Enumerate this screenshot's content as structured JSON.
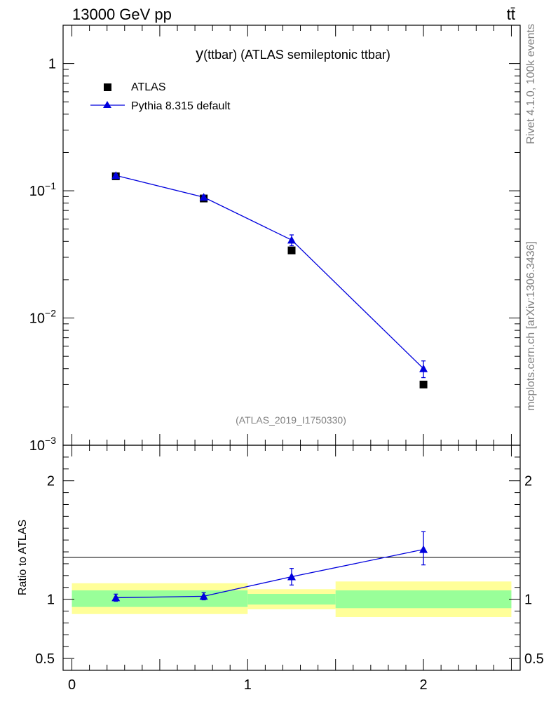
{
  "header": {
    "energy_label": "13000 GeV pp",
    "process_label": "tt̄"
  },
  "side_labels": {
    "rivet": "Rivet 4.1.0,  100k events",
    "mcplots": "mcplots.cern.ch [arXiv:1306.3436]"
  },
  "colors": {
    "data": "#000000",
    "mc": "#0000dd",
    "band_inner": "#99ff99",
    "band_outer": "#ffff99"
  },
  "chart_data": [
    {
      "type": "scatter",
      "panel": "main",
      "title_prefix": "y",
      "title_rest": "(ttbar) (ATLAS semileptonic ttbar)",
      "analysis_label": "(ATLAS_2019_I1750330)",
      "y_scale": "log",
      "ylim": [
        0.001,
        2.0
      ],
      "xlim": [
        -0.05,
        2.55
      ],
      "y_tick_labels": [
        {
          "value": 1,
          "base": "1",
          "exp": ""
        },
        {
          "value": 0.1,
          "base": "10",
          "exp": "−1"
        },
        {
          "value": 0.01,
          "base": "10",
          "exp": "−2"
        },
        {
          "value": 0.001,
          "base": "10",
          "exp": "−3"
        }
      ],
      "legend": {
        "position": "top-left",
        "entries": [
          "ATLAS",
          "Pythia 8.315 default"
        ]
      },
      "series": [
        {
          "name": "ATLAS",
          "marker": "square",
          "x": [
            0.25,
            0.75,
            1.25,
            2.0
          ],
          "y": [
            0.13,
            0.087,
            0.034,
            0.003
          ],
          "yerr": [
            0.003,
            0.002,
            0.001,
            0.0001
          ]
        },
        {
          "name": "Pythia 8.315 default",
          "marker": "triangle",
          "x": [
            0.25,
            0.75,
            1.25,
            2.0
          ],
          "y": [
            0.132,
            0.089,
            0.041,
            0.004
          ],
          "yerr": [
            0.003,
            0.003,
            0.004,
            0.0006
          ]
        }
      ]
    },
    {
      "type": "line",
      "panel": "ratio",
      "ylabel": "Ratio to ATLAS",
      "ylim": [
        0.4,
        2.3
      ],
      "xlim": [
        -0.05,
        2.55
      ],
      "y_ticks": [
        0.5,
        1,
        2
      ],
      "y_tick_labels": [
        "0.5",
        "1",
        "2"
      ],
      "x_ticks": [
        0,
        1,
        2
      ],
      "x_tick_labels": [
        "0",
        "1",
        "2"
      ],
      "bands": [
        {
          "x_low": 0.0,
          "x_high": 1.0,
          "inner": [
            0.935,
            1.075
          ],
          "outer": [
            0.875,
            1.135
          ]
        },
        {
          "x_low": 1.0,
          "x_high": 1.5,
          "inner": [
            0.955,
            1.045
          ],
          "outer": [
            0.915,
            1.085
          ]
        },
        {
          "x_low": 1.5,
          "x_high": 2.5,
          "inner": [
            0.925,
            1.075
          ],
          "outer": [
            0.85,
            1.15
          ]
        }
      ],
      "series": [
        {
          "name": "Pythia 8.315 default / ATLAS",
          "x": [
            0.25,
            0.75,
            1.25,
            2.0
          ],
          "y": [
            1.013,
            1.025,
            1.19,
            1.42
          ],
          "yerr_low": [
            0.03,
            0.03,
            0.07,
            0.13
          ],
          "yerr_high": [
            0.03,
            0.03,
            0.07,
            0.15
          ]
        }
      ]
    }
  ]
}
